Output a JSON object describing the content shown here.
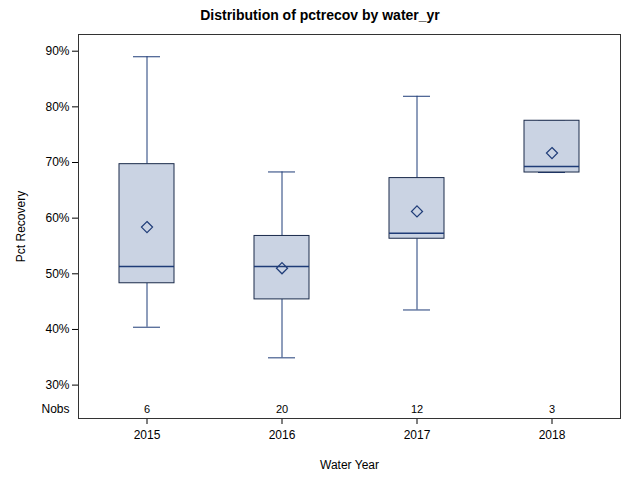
{
  "chart_data": {
    "type": "box",
    "title": "Distribution of pctrecov by water_yr",
    "x_label": "Water Year",
    "y_label": "Pct Recovery",
    "categories": [
      "2015",
      "2016",
      "2017",
      "2018"
    ],
    "min": [
      40.4,
      34.9,
      43.5,
      68.2
    ],
    "q1": [
      48.3,
      45.4,
      56.3,
      68.2
    ],
    "median": [
      51.3,
      51.3,
      57.3,
      69.3
    ],
    "q3": [
      69.7,
      56.8,
      67.2,
      77.5
    ],
    "max": [
      89.0,
      68.3,
      81.9,
      77.5
    ],
    "mean": [
      58.4,
      51.0,
      61.2,
      71.7
    ],
    "nobs_label": "Nobs",
    "nobs": [
      6,
      20,
      12,
      3
    ],
    "color": "#cad3e3",
    "ylim": [
      24,
      93
    ],
    "yticks": [
      {
        "value": 30,
        "label": "30%"
      },
      {
        "value": 40,
        "label": "40%"
      },
      {
        "value": 50,
        "label": "50%"
      },
      {
        "value": 60,
        "label": "60%"
      },
      {
        "value": 70,
        "label": "70%"
      },
      {
        "value": 80,
        "label": "80%"
      },
      {
        "value": 90,
        "label": "90%"
      }
    ]
  }
}
